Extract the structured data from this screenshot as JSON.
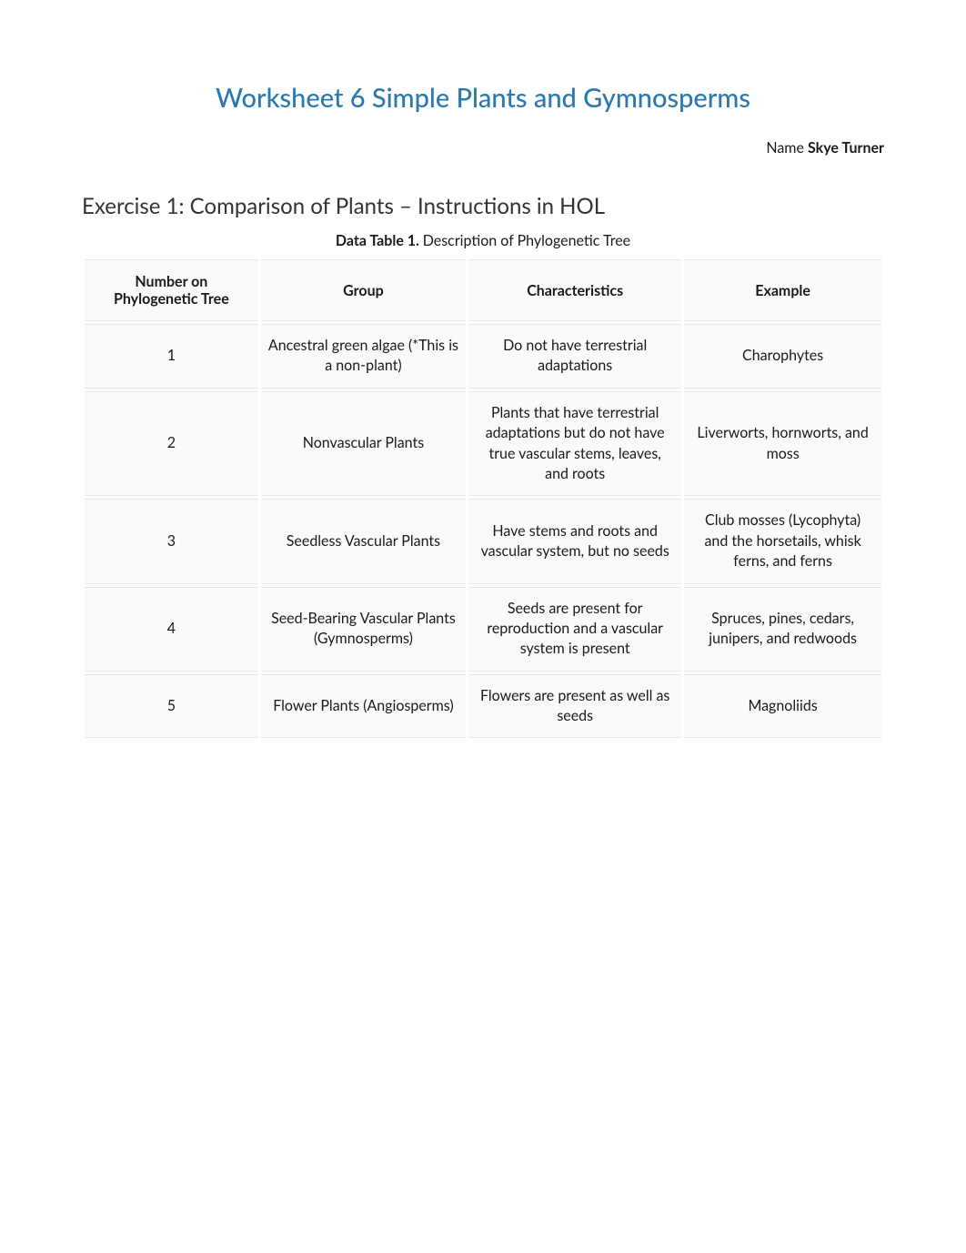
{
  "document": {
    "title": "Worksheet 6 Simple Plants and Gymnosperms",
    "name_label": "Name ",
    "name_value": "Skye Turner",
    "exercise_heading": "Exercise 1: Comparison of Plants – Instructions in HOL",
    "table_caption_label": "Data Table 1. ",
    "table_caption_desc": "Description of Phylogenetic Tree",
    "colors": {
      "title_color": "#2a7ab0",
      "text_color": "#1a1a1a",
      "cell_background": "#fafafa",
      "cell_border": "#e8e8e8",
      "page_background": "#ffffff"
    },
    "typography": {
      "title_fontsize": 29,
      "heading_fontsize": 24,
      "body_fontsize": 16,
      "title_weight": 500,
      "header_weight": 700
    },
    "table": {
      "type": "table",
      "columns": [
        "Number on Phylogenetic Tree",
        "Group",
        "Characteristics",
        "Example"
      ],
      "column_widths_pct": [
        22,
        26,
        27,
        25
      ],
      "rows": [
        {
          "number": "1",
          "group": "Ancestral green algae (*This is a non-plant)",
          "characteristics": "Do not have terrestrial adaptations",
          "example": "Charophytes"
        },
        {
          "number": "2",
          "group": "Nonvascular Plants",
          "characteristics": "Plants that have terrestrial adaptations but do not have true vascular stems, leaves, and roots",
          "example": "Liverworts, hornworts, and moss"
        },
        {
          "number": "3",
          "group": "Seedless Vascular Plants",
          "characteristics": "Have stems and roots and vascular system, but no seeds",
          "example": "Club mosses (Lycophyta) and the horsetails, whisk ferns, and ferns"
        },
        {
          "number": "4",
          "group": "Seed-Bearing Vascular Plants (Gymnosperms)",
          "characteristics": "Seeds are present for reproduction and a vascular system is present",
          "example": "Spruces, pines, cedars, junipers, and redwoods"
        },
        {
          "number": "5",
          "group": "Flower Plants (Angiosperms)",
          "characteristics": "Flowers are present as well as seeds",
          "example": "Magnoliids"
        }
      ]
    }
  }
}
